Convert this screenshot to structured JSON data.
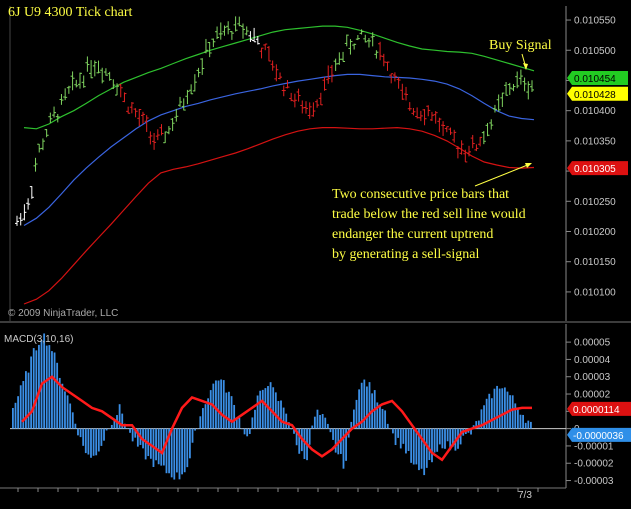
{
  "chart_data": {
    "type": "line",
    "title": "6J U9 4300 Tick chart",
    "copyright": "© 2009 NinjaTrader, LLC",
    "colors": {
      "background": "#000000",
      "bar_up": "#7fd35f",
      "bar_down": "#e02020",
      "bar_neutral": "#ffffff",
      "upper_band": "#2ec02e",
      "middle_band": "#3a64e0",
      "lower_band": "#d41212",
      "macd_hist": "#3b8fe6",
      "macd_avg": "#ff1a1a",
      "annotation": "#ffff44",
      "axis_text": "#c8c8c8"
    },
    "price_panel": {
      "ylim": [
        0.01008,
        0.01056
      ],
      "y_ticks": [
        "0.010550",
        "0.010500",
        "0.010450",
        "0.010400",
        "0.010350",
        "0.010300",
        "0.010250",
        "0.010200",
        "0.010150",
        "0.010100"
      ],
      "series": [
        {
          "name": "",
          "role": "upper",
          "values": [
            0.010372,
            0.01037,
            0.010378,
            0.01039,
            0.0104,
            0.010412,
            0.010425,
            0.010436,
            0.010447,
            0.010455,
            0.010463,
            0.01047,
            0.010478,
            0.010486,
            0.010493,
            0.0105,
            0.010506,
            0.010512,
            0.010518,
            0.010524,
            0.01053,
            0.010534,
            0.010536,
            0.010538,
            0.01054,
            0.01054,
            0.010538,
            0.010533,
            0.010527,
            0.01052,
            0.010513,
            0.010507,
            0.010502,
            0.0105,
            0.010498,
            0.010497,
            0.010495,
            0.01049,
            0.010484,
            0.010478,
            0.010472,
            0.010466
          ]
        },
        {
          "name": "",
          "role": "middle",
          "values": [
            0.01021,
            0.010222,
            0.01024,
            0.010262,
            0.010285,
            0.010305,
            0.010323,
            0.01034,
            0.010355,
            0.01037,
            0.010383,
            0.010393,
            0.0104,
            0.010407,
            0.010412,
            0.010418,
            0.010423,
            0.010428,
            0.010432,
            0.010436,
            0.010441,
            0.010445,
            0.010449,
            0.010452,
            0.010455,
            0.010458,
            0.01046,
            0.01046,
            0.010458,
            0.010456,
            0.010455,
            0.010454,
            0.010452,
            0.010449,
            0.010444,
            0.010436,
            0.010425,
            0.010412,
            0.0104,
            0.010391,
            0.010387,
            0.010385
          ]
        },
        {
          "name": "",
          "role": "lower",
          "values": [
            0.01008,
            0.010088,
            0.010102,
            0.010122,
            0.010145,
            0.010168,
            0.01019,
            0.010212,
            0.010235,
            0.010258,
            0.01028,
            0.010297,
            0.010303,
            0.010307,
            0.010312,
            0.010318,
            0.010324,
            0.01033,
            0.010337,
            0.010345,
            0.010353,
            0.01036,
            0.010366,
            0.01037,
            0.010372,
            0.010372,
            0.010371,
            0.01037,
            0.01037,
            0.010371,
            0.010372,
            0.01037,
            0.010366,
            0.010359,
            0.01035,
            0.010338,
            0.010325,
            0.010315,
            0.01031,
            0.010306,
            0.010305,
            0.010306
          ]
        },
        {
          "name": "",
          "role": "price",
          "values": [
            0.010215,
            0.010245,
            0.01033,
            0.010375,
            0.010405,
            0.010435,
            0.010455,
            0.01048,
            0.01047,
            0.010455,
            0.01042,
            0.010395,
            0.010375,
            0.010345,
            0.010365,
            0.010395,
            0.010435,
            0.01047,
            0.01051,
            0.010525,
            0.010535,
            0.01054,
            0.010525,
            0.0105,
            0.01047,
            0.01044,
            0.01042,
            0.0104,
            0.01042,
            0.01045,
            0.010485,
            0.01051,
            0.01052,
            0.010515,
            0.010495,
            0.01046,
            0.01042,
            0.010405,
            0.0104,
            0.01039,
            0.01036,
            0.010345,
            0.010335,
            0.010345,
            0.010375,
            0.01041,
            0.01044,
            0.01045,
            0.01044
          ]
        }
      ],
      "price_colors": [
        "w",
        "w",
        "g",
        "g",
        "g",
        "g",
        "g",
        "g",
        "g",
        "g",
        "r",
        "r",
        "r",
        "r",
        "g",
        "g",
        "g",
        "g",
        "g",
        "g",
        "g",
        "g",
        "w",
        "r",
        "r",
        "r",
        "r",
        "r",
        "r",
        "r",
        "g",
        "g",
        "g",
        "g",
        "r",
        "r",
        "r",
        "r",
        "r",
        "r",
        "r",
        "r",
        "r",
        "r",
        "g",
        "g",
        "g",
        "g",
        "g"
      ],
      "price_tags": [
        {
          "label": "0.010454",
          "value": 0.010454,
          "color": "#22cc22",
          "text_color": "#000000"
        },
        {
          "label": "0.010428",
          "value": 0.010428,
          "color": "#ffff00",
          "text_color": "#000000"
        },
        {
          "label": "0.010305",
          "value": 0.010305,
          "color": "#dd1111",
          "text_color": "#ffffff"
        }
      ],
      "annotations": [
        {
          "text": "Buy Signal"
        },
        {
          "text": "Two consecutive price bars that\ntrade below the red sell line would\nendanger the current uptrend\nby generating a sell-signal"
        }
      ]
    },
    "macd_panel": {
      "label": "MACD(3,10,16)",
      "ylim": [
        -3.2e-05,
        5.7e-05
      ],
      "y_ticks": [
        "0.00005",
        "0.00004",
        "0.00003",
        "0.00002",
        "0.00001",
        "0",
        "-0.00001",
        "-0.00002",
        "-0.00003"
      ],
      "histogram": [
        1.2e-05,
        2.5e-05,
        4.2e-05,
        5.5e-05,
        4.6e-05,
        2.8e-05,
        1.2e-05,
        -8e-06,
        -1.8e-05,
        -1e-05,
        4e-06,
        1.2e-05,
        -4e-06,
        -1.2e-05,
        -1.8e-05,
        -2.2e-05,
        -2.6e-05,
        -2.8e-05,
        -2e-05,
        5e-06,
        2e-05,
        3e-05,
        2.2e-05,
        8e-06,
        -6e-06,
        1.6e-05,
        2.8e-05,
        1.8e-05,
        1e-05,
        -1e-05,
        -1.8e-05,
        1e-05,
        4e-06,
        -1.2e-05,
        -2.2e-05,
        1.8e-05,
        2.8e-05,
        2e-05,
        1.2e-05,
        -6e-06,
        -1e-05,
        -2.2e-05,
        -2.6e-05,
        -1.8e-05,
        -8e-06,
        -1.2e-05,
        -6e-06,
        -2e-06,
        1e-05,
        2e-05,
        2.6e-05,
        1.8e-05,
        1e-05,
        2e-06
      ],
      "signal": [
        4e-06,
        1e-05,
        2.6e-05,
        3e-05,
        2.4e-05,
        2e-05,
        1.6e-05,
        1.2e-05,
        1e-05,
        6e-06,
        2e-06,
        2e-06,
        -6e-06,
        -1e-05,
        -1.4e-05,
        0.0,
        1.2e-05,
        1.8e-05,
        1.6e-05,
        1.4e-05,
        8e-06,
        4e-06,
        8e-06,
        1.2e-05,
        1.6e-05,
        1e-05,
        4e-06,
        2e-06,
        -6e-06,
        -1.2e-05,
        -1.6e-05,
        -1.2e-05,
        -6e-06,
        0.0,
        4e-06,
        1e-05,
        1.4e-05,
        1.6e-05,
        1e-05,
        2e-06,
        -6e-06,
        -1.4e-05,
        -1.8e-05,
        -1e-05,
        -2e-06,
        0.0,
        2e-06,
        5e-06,
        8e-06,
        1.1e-05,
        1.2e-05,
        1.2e-05
      ],
      "tags": [
        {
          "label": "0.0000114",
          "value": 1.14e-05,
          "color": "#dd1111",
          "text_color": "#ffffff"
        },
        {
          "label": "-0.0000036",
          "value": -3.6e-06,
          "color": "#2f8fe8",
          "text_color": "#ffffff"
        }
      ],
      "x_tick_label": "7/3"
    }
  }
}
